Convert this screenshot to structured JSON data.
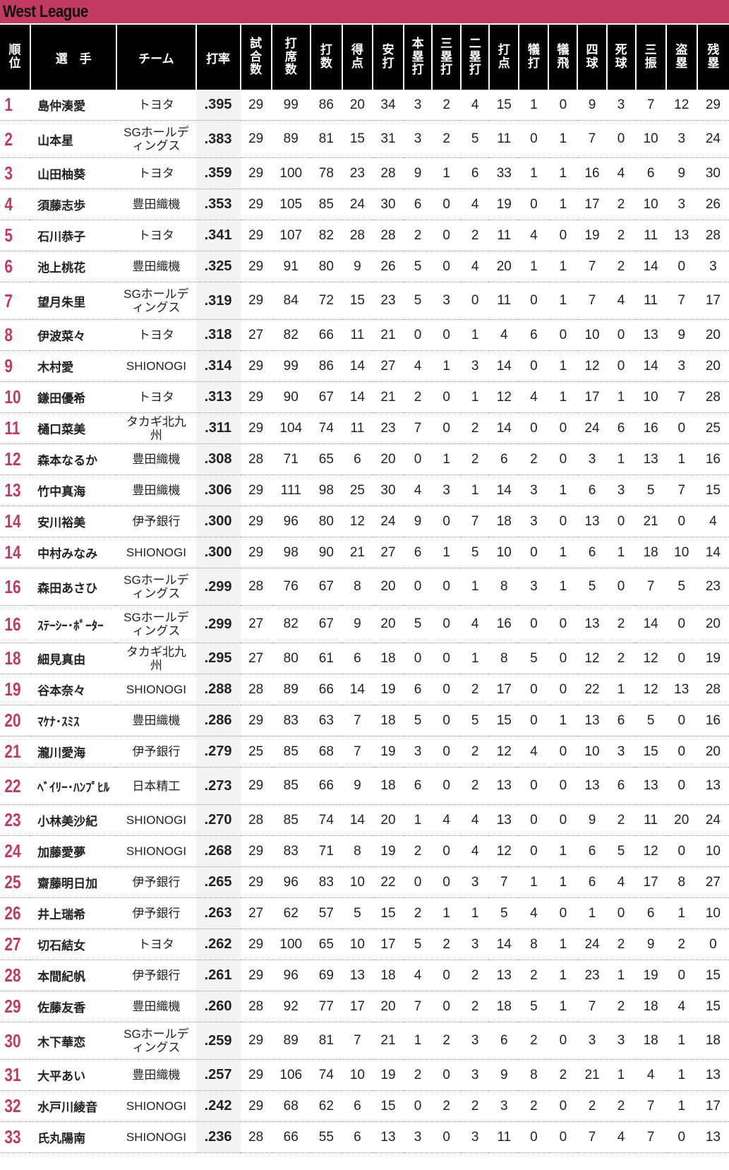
{
  "title": "West League",
  "accent_color": "#c23a60",
  "rank_color": "#c0395f",
  "columns": [
    {
      "label": "順位",
      "stacked": true
    },
    {
      "label": "選　手",
      "stacked": false
    },
    {
      "label": "チーム",
      "stacked": false
    },
    {
      "label": "打率",
      "stacked": false
    },
    {
      "label": "試合数",
      "stacked": true
    },
    {
      "label": "打席数",
      "stacked": true
    },
    {
      "label": "打数",
      "stacked": true
    },
    {
      "label": "得点",
      "stacked": true
    },
    {
      "label": "安打",
      "stacked": true
    },
    {
      "label": "本塁打",
      "stacked": true
    },
    {
      "label": "三塁打",
      "stacked": true
    },
    {
      "label": "二塁打",
      "stacked": true
    },
    {
      "label": "打点",
      "stacked": true
    },
    {
      "label": "犠打",
      "stacked": true
    },
    {
      "label": "犠飛",
      "stacked": true
    },
    {
      "label": "四球",
      "stacked": true
    },
    {
      "label": "死球",
      "stacked": true
    },
    {
      "label": "三振",
      "stacked": true
    },
    {
      "label": "盗塁",
      "stacked": true
    },
    {
      "label": "残塁",
      "stacked": true
    }
  ],
  "rows": [
    [
      "1",
      "島仲湊愛",
      "トヨタ",
      ".395",
      "29",
      "99",
      "86",
      "20",
      "34",
      "3",
      "2",
      "4",
      "15",
      "1",
      "0",
      "9",
      "3",
      "7",
      "12",
      "29"
    ],
    [
      "2",
      "山本星",
      "SGホールディングス",
      ".383",
      "29",
      "89",
      "81",
      "15",
      "31",
      "3",
      "2",
      "5",
      "11",
      "0",
      "1",
      "7",
      "0",
      "10",
      "3",
      "24"
    ],
    [
      "3",
      "山田柚葵",
      "トヨタ",
      ".359",
      "29",
      "100",
      "78",
      "23",
      "28",
      "9",
      "1",
      "6",
      "33",
      "1",
      "1",
      "16",
      "4",
      "6",
      "9",
      "30"
    ],
    [
      "4",
      "須藤志歩",
      "豊田織機",
      ".353",
      "29",
      "105",
      "85",
      "24",
      "30",
      "6",
      "0",
      "4",
      "19",
      "0",
      "1",
      "17",
      "2",
      "10",
      "3",
      "26"
    ],
    [
      "5",
      "石川恭子",
      "トヨタ",
      ".341",
      "29",
      "107",
      "82",
      "28",
      "28",
      "2",
      "0",
      "2",
      "11",
      "4",
      "0",
      "19",
      "2",
      "11",
      "13",
      "28"
    ],
    [
      "6",
      "池上桃花",
      "豊田織機",
      ".325",
      "29",
      "91",
      "80",
      "9",
      "26",
      "5",
      "0",
      "4",
      "20",
      "1",
      "1",
      "7",
      "2",
      "14",
      "0",
      "3"
    ],
    [
      "7",
      "望月朱里",
      "SGホールディングス",
      ".319",
      "29",
      "84",
      "72",
      "15",
      "23",
      "5",
      "3",
      "0",
      "11",
      "0",
      "1",
      "7",
      "4",
      "11",
      "7",
      "17"
    ],
    [
      "8",
      "伊波菜々",
      "トヨタ",
      ".318",
      "27",
      "82",
      "66",
      "11",
      "21",
      "0",
      "0",
      "1",
      "4",
      "6",
      "0",
      "10",
      "0",
      "13",
      "9",
      "20"
    ],
    [
      "9",
      "木村愛",
      "SHIONOGI",
      ".314",
      "29",
      "99",
      "86",
      "14",
      "27",
      "4",
      "1",
      "3",
      "14",
      "0",
      "1",
      "12",
      "0",
      "14",
      "3",
      "20"
    ],
    [
      "10",
      "鎌田優希",
      "トヨタ",
      ".313",
      "29",
      "90",
      "67",
      "14",
      "21",
      "2",
      "0",
      "1",
      "12",
      "4",
      "1",
      "17",
      "1",
      "10",
      "7",
      "28"
    ],
    [
      "11",
      "樋口菜美",
      "タカギ北九州",
      ".311",
      "29",
      "104",
      "74",
      "11",
      "23",
      "7",
      "0",
      "2",
      "14",
      "0",
      "0",
      "24",
      "6",
      "16",
      "0",
      "25"
    ],
    [
      "12",
      "森本なるか",
      "豊田織機",
      ".308",
      "28",
      "71",
      "65",
      "6",
      "20",
      "0",
      "1",
      "2",
      "6",
      "2",
      "0",
      "3",
      "1",
      "13",
      "1",
      "16"
    ],
    [
      "13",
      "竹中真海",
      "豊田織機",
      ".306",
      "29",
      "111",
      "98",
      "25",
      "30",
      "4",
      "3",
      "1",
      "14",
      "3",
      "1",
      "6",
      "3",
      "5",
      "7",
      "15"
    ],
    [
      "14",
      "安川裕美",
      "伊予銀行",
      ".300",
      "29",
      "96",
      "80",
      "12",
      "24",
      "9",
      "0",
      "7",
      "18",
      "3",
      "0",
      "13",
      "0",
      "21",
      "0",
      "4"
    ],
    [
      "14",
      "中村みなみ",
      "SHIONOGI",
      ".300",
      "29",
      "98",
      "90",
      "21",
      "27",
      "6",
      "1",
      "5",
      "10",
      "0",
      "1",
      "6",
      "1",
      "18",
      "10",
      "14"
    ],
    [
      "16",
      "森田あさひ",
      "SGホールディングス",
      ".299",
      "28",
      "76",
      "67",
      "8",
      "20",
      "0",
      "0",
      "1",
      "8",
      "3",
      "1",
      "5",
      "0",
      "7",
      "5",
      "23"
    ],
    [
      "16",
      "ｽﾃｰｼｰ･ﾎﾟｰﾀｰ",
      "SGホールディングス",
      ".299",
      "27",
      "82",
      "67",
      "9",
      "20",
      "5",
      "0",
      "4",
      "16",
      "0",
      "0",
      "13",
      "2",
      "14",
      "0",
      "20"
    ],
    [
      "18",
      "細見真由",
      "タカギ北九州",
      ".295",
      "27",
      "80",
      "61",
      "6",
      "18",
      "0",
      "0",
      "1",
      "8",
      "5",
      "0",
      "12",
      "2",
      "12",
      "0",
      "19"
    ],
    [
      "19",
      "谷本奈々",
      "SHIONOGI",
      ".288",
      "28",
      "89",
      "66",
      "14",
      "19",
      "6",
      "0",
      "2",
      "17",
      "0",
      "0",
      "22",
      "1",
      "12",
      "13",
      "28"
    ],
    [
      "20",
      "ﾏｹﾅ･ｽﾐｽ",
      "豊田織機",
      ".286",
      "29",
      "83",
      "63",
      "7",
      "18",
      "5",
      "0",
      "5",
      "15",
      "0",
      "1",
      "13",
      "6",
      "5",
      "0",
      "16"
    ],
    [
      "21",
      "瀧川愛海",
      "伊予銀行",
      ".279",
      "25",
      "85",
      "68",
      "7",
      "19",
      "3",
      "0",
      "2",
      "12",
      "4",
      "0",
      "10",
      "3",
      "15",
      "0",
      "20"
    ],
    [
      "22",
      "ﾍﾞｲﾘｰ･ﾊﾝﾌﾟﾋﾙ",
      "日本精工",
      ".273",
      "29",
      "85",
      "66",
      "9",
      "18",
      "6",
      "0",
      "2",
      "13",
      "0",
      "0",
      "13",
      "6",
      "13",
      "0",
      "13"
    ],
    [
      "23",
      "小林美沙紀",
      "SHIONOGI",
      ".270",
      "28",
      "85",
      "74",
      "14",
      "20",
      "1",
      "4",
      "4",
      "13",
      "0",
      "0",
      "9",
      "2",
      "11",
      "20",
      "24"
    ],
    [
      "24",
      "加藤愛夢",
      "SHIONOGI",
      ".268",
      "29",
      "83",
      "71",
      "8",
      "19",
      "2",
      "0",
      "4",
      "12",
      "0",
      "1",
      "6",
      "5",
      "12",
      "0",
      "10"
    ],
    [
      "25",
      "齋藤明日加",
      "伊予銀行",
      ".265",
      "29",
      "96",
      "83",
      "10",
      "22",
      "0",
      "0",
      "3",
      "7",
      "1",
      "1",
      "6",
      "4",
      "17",
      "8",
      "27"
    ],
    [
      "26",
      "井上瑞希",
      "伊予銀行",
      ".263",
      "27",
      "62",
      "57",
      "5",
      "15",
      "2",
      "1",
      "1",
      "5",
      "4",
      "0",
      "1",
      "0",
      "6",
      "1",
      "10"
    ],
    [
      "27",
      "切石結女",
      "トヨタ",
      ".262",
      "29",
      "100",
      "65",
      "10",
      "17",
      "5",
      "2",
      "3",
      "14",
      "8",
      "1",
      "24",
      "2",
      "9",
      "2",
      "0"
    ],
    [
      "28",
      "本間紀帆",
      "伊予銀行",
      ".261",
      "29",
      "96",
      "69",
      "13",
      "18",
      "4",
      "0",
      "2",
      "13",
      "2",
      "1",
      "23",
      "1",
      "19",
      "0",
      "15"
    ],
    [
      "29",
      "佐藤友香",
      "豊田織機",
      ".260",
      "28",
      "92",
      "77",
      "17",
      "20",
      "7",
      "0",
      "2",
      "18",
      "5",
      "1",
      "7",
      "2",
      "18",
      "4",
      "15"
    ],
    [
      "30",
      "木下華恋",
      "SGホールディングス",
      ".259",
      "29",
      "89",
      "81",
      "7",
      "21",
      "1",
      "2",
      "3",
      "6",
      "2",
      "0",
      "3",
      "3",
      "18",
      "1",
      "18"
    ],
    [
      "31",
      "大平あい",
      "豊田織機",
      ".257",
      "29",
      "106",
      "74",
      "10",
      "19",
      "2",
      "0",
      "3",
      "9",
      "8",
      "2",
      "21",
      "1",
      "4",
      "1",
      "13"
    ],
    [
      "32",
      "水戸川綾音",
      "SHIONOGI",
      ".242",
      "29",
      "68",
      "62",
      "6",
      "15",
      "0",
      "2",
      "2",
      "3",
      "2",
      "0",
      "2",
      "2",
      "7",
      "1",
      "17"
    ],
    [
      "33",
      "氏丸陽南",
      "SHIONOGI",
      ".236",
      "28",
      "66",
      "55",
      "6",
      "13",
      "3",
      "0",
      "3",
      "11",
      "0",
      "0",
      "7",
      "4",
      "7",
      "0",
      "13"
    ]
  ]
}
